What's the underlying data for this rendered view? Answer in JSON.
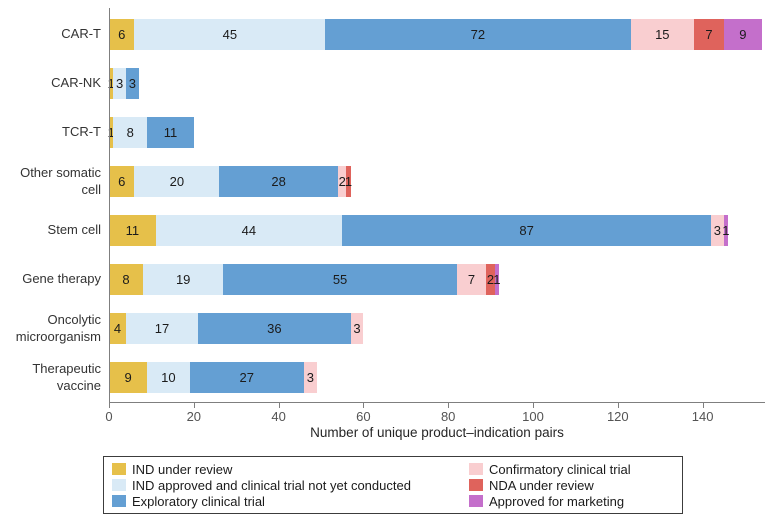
{
  "chart_data": {
    "type": "bar",
    "orientation": "horizontal",
    "title": "",
    "xlabel": "Number of unique product–indication pairs",
    "ylabel": "",
    "categories": [
      "CAR-T",
      "CAR-NK",
      "TCR-T",
      "Other somatic cell",
      "Stem cell",
      "Gene therapy",
      "Oncolytic microorganism",
      "Therapeutic vaccine"
    ],
    "series": [
      {
        "name": "IND under review",
        "color": "#e6c04a",
        "values": [
          6,
          1,
          1,
          6,
          11,
          8,
          4,
          9
        ]
      },
      {
        "name": "IND approved and clinical trial not yet conducted",
        "color": "#d9eaf6",
        "values": [
          45,
          3,
          8,
          20,
          44,
          19,
          17,
          10
        ]
      },
      {
        "name": "Exploratory clinical trial",
        "color": "#649fd3",
        "values": [
          72,
          3,
          11,
          28,
          87,
          55,
          36,
          27
        ]
      },
      {
        "name": "Confirmatory clinical trial",
        "color": "#f9ced0",
        "values": [
          15,
          0,
          0,
          2,
          3,
          7,
          3,
          3
        ]
      },
      {
        "name": "NDA under review",
        "color": "#df635c",
        "values": [
          7,
          0,
          0,
          1,
          0,
          2,
          0,
          0
        ]
      },
      {
        "name": "Approved for marketing",
        "color": "#c46fcb",
        "values": [
          9,
          0,
          0,
          0,
          1,
          1,
          0,
          0
        ]
      }
    ],
    "totals": [
      154,
      7,
      20,
      57,
      146,
      92,
      60,
      49
    ],
    "xticks": [
      0,
      20,
      40,
      60,
      80,
      100,
      120,
      140
    ],
    "xlim": [
      0,
      154.5
    ],
    "grid": false,
    "legend_position": "bottom",
    "bar_value_labels_shown": true
  },
  "legend": {
    "columns": [
      [
        0,
        1,
        2
      ],
      [
        3,
        4,
        5
      ]
    ]
  },
  "style": {
    "axis_color": "#7f7f7f",
    "label_color": "#333333",
    "value_label_color": "#1b1b1b"
  }
}
